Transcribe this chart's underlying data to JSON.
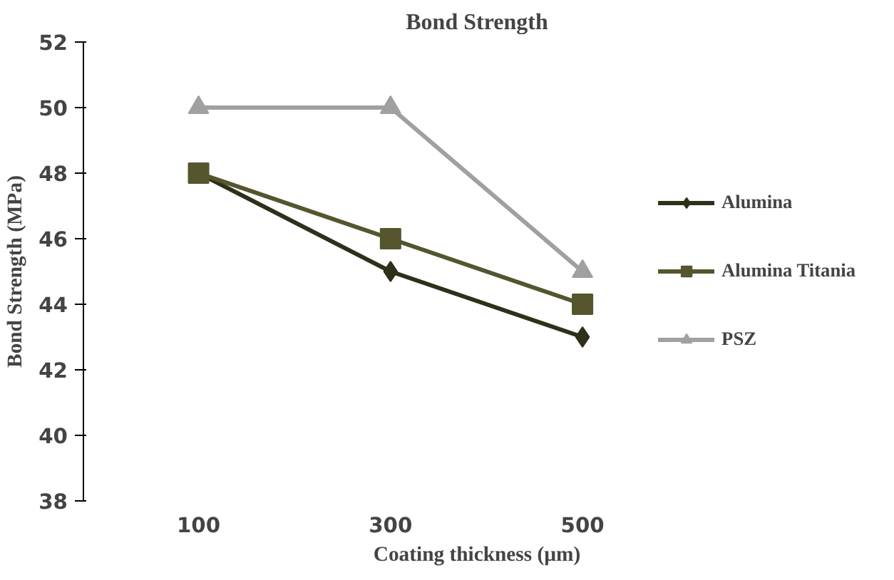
{
  "chart_data": {
    "type": "line",
    "title": "Bond Strength",
    "xlabel": "Coating thickness (µm)",
    "ylabel": "Bond Strength (MPa)",
    "categories": [
      "100",
      "300",
      "500"
    ],
    "series": [
      {
        "name": "Alumina",
        "color": "#2f2f1a",
        "values": [
          48,
          45,
          43
        ],
        "marker": "diamond"
      },
      {
        "name": "Alumina Titania",
        "color": "#55552e",
        "values": [
          48,
          46,
          44
        ],
        "marker": "square"
      },
      {
        "name": "PSZ",
        "color": "#a0a0a0",
        "values": [
          50,
          50,
          45
        ],
        "marker": "triangle"
      }
    ],
    "ylim": [
      38,
      52
    ],
    "yticks": [
      38,
      40,
      42,
      44,
      46,
      48,
      50,
      52
    ],
    "legend": "right",
    "line_style": "solid"
  }
}
